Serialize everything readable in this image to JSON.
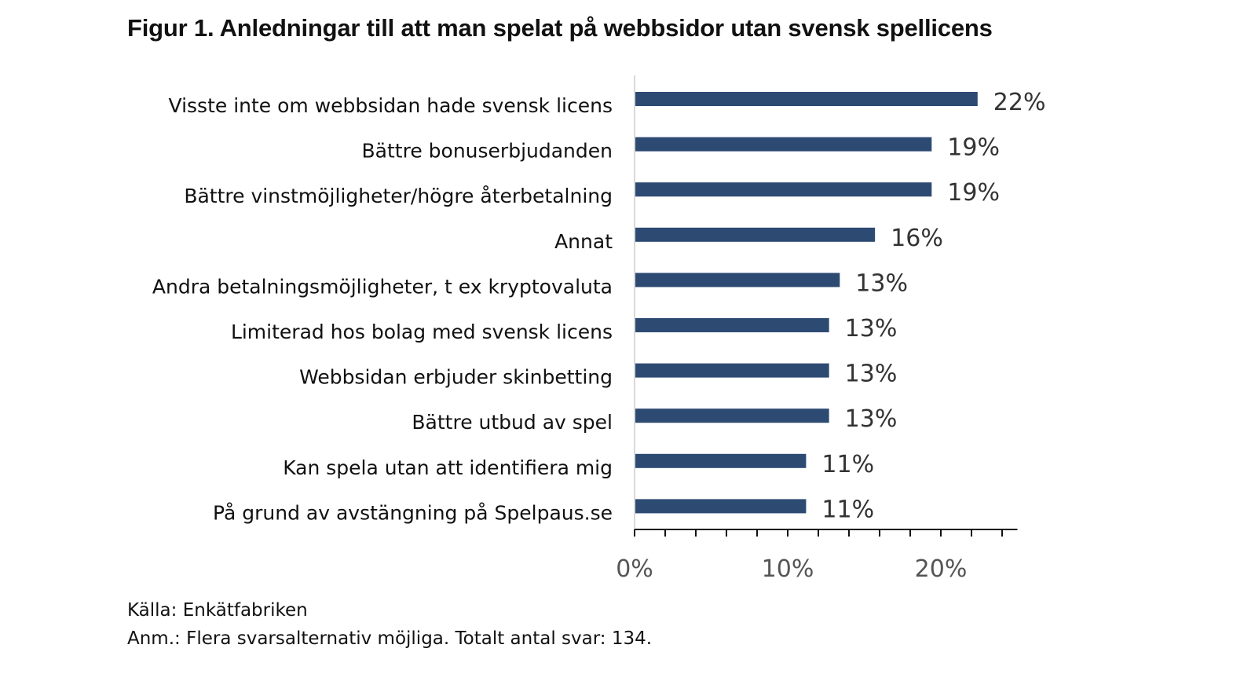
{
  "title": "Figur 1. Anledningar till att man spelat på webbsidor utan svensk spellicens",
  "chart_data": {
    "type": "bar",
    "orientation": "horizontal",
    "title": "Figur 1. Anledningar till att man spelat på webbsidor utan svensk spellicens",
    "categories": [
      "Visste inte om webbsidan hade svensk licens",
      "Bättre bonuserbjudanden",
      "Bättre vinstmöjligheter/högre återbetalning",
      "Annat",
      "Andra betalningsmöjligheter, t ex kryptovaluta",
      "Limiterad hos bolag med svensk licens",
      "Webbsidan erbjuder skinbetting",
      "Bättre utbud av spel",
      "Kan spela utan att identifiera mig",
      "På grund av avstängning på Spelpaus.se"
    ],
    "values": [
      22.4,
      19.4,
      19.4,
      15.7,
      13.4,
      12.7,
      12.7,
      12.7,
      11.2,
      11.2
    ],
    "value_labels": [
      "22%",
      "19%",
      "19%",
      "16%",
      "13%",
      "13%",
      "13%",
      "13%",
      "11%",
      "11%"
    ],
    "xlim": [
      0,
      25
    ],
    "major_ticks": [
      0,
      10,
      20
    ],
    "minor_tick_step": 2,
    "tick_labels": [
      "0%",
      "10%",
      "20%"
    ],
    "bar_color": "#2d4a73",
    "xlabel": "",
    "ylabel": ""
  },
  "notes": {
    "source": "Källa: Enkätfabriken",
    "remark": "Anm.: Flera svarsalternativ möjliga. Totalt antal svar: 134."
  }
}
